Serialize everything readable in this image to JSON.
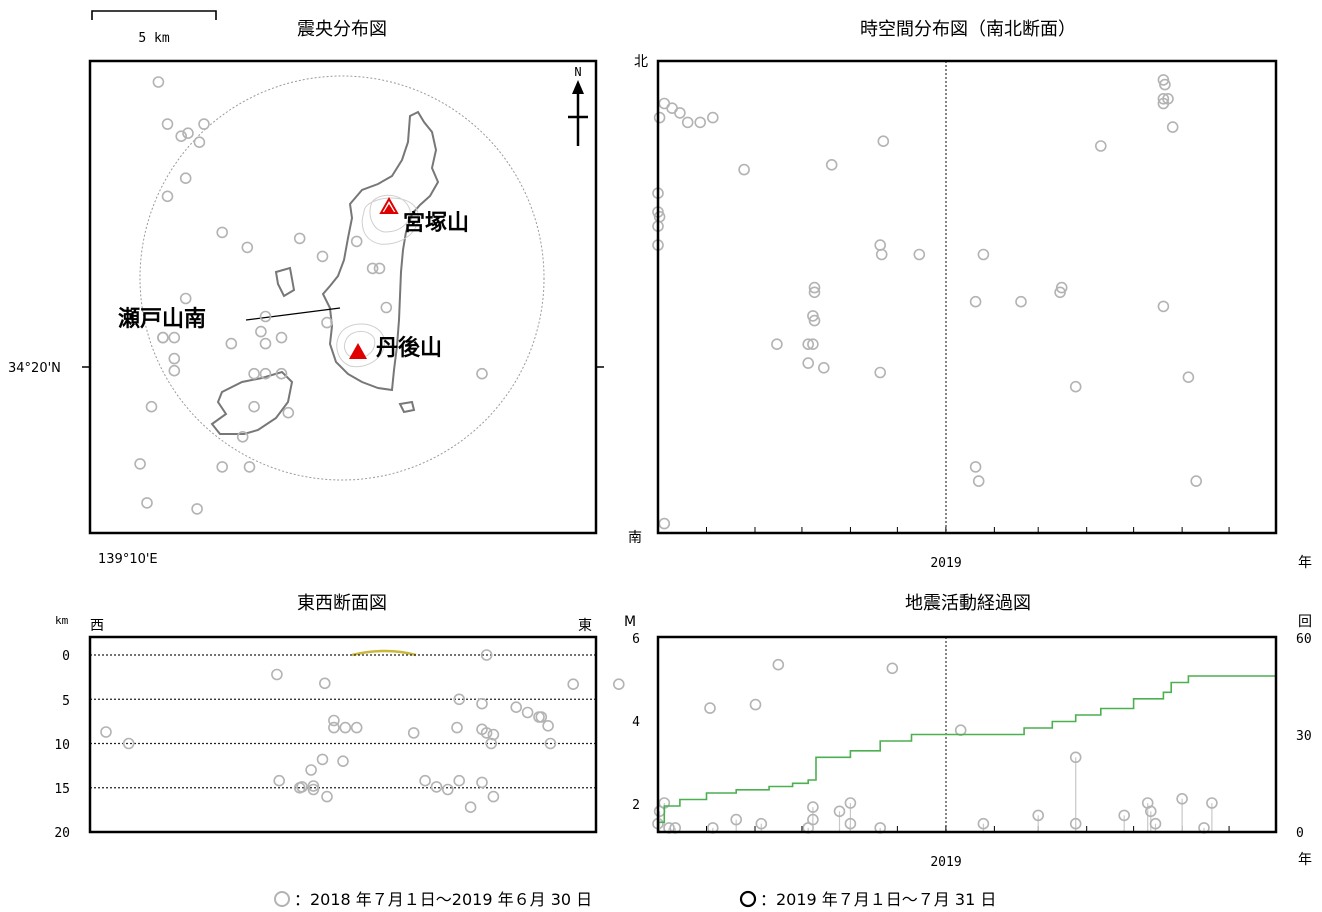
{
  "panels": {
    "epicenter": {
      "title": "震央分布図",
      "scale_label": "5 km",
      "lat_label": "34°20'N",
      "lon_label": "139°10'E",
      "north_label": "N"
    },
    "spacetime": {
      "title": "時空間分布図（南北断面）",
      "north_label": "北",
      "south_label": "南",
      "year_tick": "2019",
      "year_unit": "年"
    },
    "ew_section": {
      "title": "東西断面図",
      "west_label": "西",
      "east_label": "東",
      "depth_unit": "km",
      "depth_ticks": [
        "0",
        "5",
        "10",
        "15",
        "20"
      ]
    },
    "activity": {
      "title": "地震活動経過図",
      "m_label": "M",
      "count_label": "回",
      "m_ticks": [
        "6",
        "4",
        "2"
      ],
      "count_ticks": [
        "60",
        "30",
        "0"
      ],
      "year_tick": "2019",
      "year_unit": "年"
    }
  },
  "map_labels": {
    "miyatsukayama": "宮塚山",
    "tangoyama": "丹後山",
    "setoyama_south": "瀬戸山南"
  },
  "legend": {
    "past": "：2018 年７月１日〜2019 年６月 30 日",
    "recent": "：2019 年７月１日〜７月 31 日"
  },
  "colors": {
    "past_events": "#b3b3b3",
    "recent_events": "#000000",
    "cumulative": "#4caf50",
    "volcano": "#e00000"
  },
  "chart_data": [
    {
      "type": "scatter",
      "title": "震央分布図",
      "description": "epicenters (all in past period, gray)",
      "x": [
        139.15,
        139.153,
        139.175,
        139.158,
        139.162,
        139.178,
        139.176,
        139.168,
        139.171,
        139.17,
        139.162,
        139.186,
        139.197,
        139.22,
        139.23,
        139.245,
        139.255,
        139.258,
        139.232,
        139.203,
        139.205,
        139.16,
        139.165,
        139.19,
        139.205,
        139.212,
        139.215,
        139.205,
        139.212,
        139.2,
        139.2,
        139.195,
        139.186,
        139.155,
        139.17,
        139.198,
        139.165,
        139.165,
        139.16,
        139.252,
        139.3
      ],
      "y": [
        34.303,
        34.29,
        34.288,
        34.43,
        34.416,
        34.416,
        34.41,
        34.412,
        34.413,
        34.398,
        34.392,
        34.38,
        34.375,
        34.378,
        34.372,
        34.377,
        34.368,
        34.355,
        34.35,
        34.347,
        34.352,
        34.345,
        34.345,
        34.343,
        34.343,
        34.345,
        34.32,
        34.333,
        34.333,
        34.333,
        34.322,
        34.312,
        34.302,
        34.322,
        34.358,
        34.302,
        34.338,
        34.334,
        34.345,
        34.368,
        34.333
      ]
    },
    {
      "type": "scatter",
      "title": "時空間分布図（南北断面）",
      "x": [
        "2018-07-02",
        "2018-07-05",
        "2018-07-10",
        "2018-07-15",
        "2018-07-20",
        "2018-07-28",
        "2018-08-05",
        "2018-07-01",
        "2018-07-02",
        "2018-07-01",
        "2018-07-01",
        "2018-07-01",
        "2018-07-05",
        "2018-09-15",
        "2018-10-05",
        "2018-10-05",
        "2018-10-15",
        "2018-11-20",
        "2018-11-22",
        "2018-12-15",
        "2018-10-08",
        "2018-10-09",
        "2018-10-09",
        "2018-10-09",
        "2018-10-08",
        "2018-08-25",
        "2018-10-20",
        "2018-11-21",
        "2018-11-20",
        "2019-01-20",
        "2019-01-25",
        "2019-02-18",
        "2019-03-25",
        "2019-03-15",
        "2019-03-16",
        "2019-04-10",
        "2019-05-20",
        "2019-06-05",
        "2019-01-20",
        "2019-06-10",
        "2019-01-22",
        "2019-05-26",
        "2019-05-20",
        "2019-05-21",
        "2019-05-20",
        "2019-05-20",
        "2019-05-23"
      ],
      "y": [
        0.88,
        0.91,
        0.9,
        0.89,
        0.87,
        0.87,
        0.88,
        0.65,
        0.67,
        0.68,
        0.72,
        0.61,
        0.02,
        0.4,
        0.4,
        0.36,
        0.35,
        0.34,
        0.83,
        0.59,
        0.46,
        0.45,
        0.52,
        0.51,
        0.4,
        0.77,
        0.78,
        0.59,
        0.61,
        0.49,
        0.59,
        0.49,
        0.31,
        0.51,
        0.52,
        0.82,
        0.48,
        0.33,
        0.14,
        0.11,
        0.11,
        0.86,
        0.96,
        0.95,
        0.92,
        0.91,
        0.92
      ],
      "ylabel_top": "北",
      "ylabel_bottom": "南"
    },
    {
      "type": "scatter",
      "title": "東西断面図",
      "x": [
        139.135,
        139.145,
        139.21,
        139.231,
        139.235,
        139.235,
        139.24,
        139.245,
        139.239,
        139.225,
        139.23,
        139.226,
        139.226,
        139.221,
        139.22,
        139.211,
        139.232,
        139.29,
        139.3,
        139.315,
        139.32,
        139.325,
        139.326,
        139.3,
        139.302,
        139.305,
        139.329,
        139.34,
        139.36,
        139.4,
        139.43,
        139.48,
        139.42,
        139.51,
        139.27,
        139.275,
        139.28,
        139.285,
        139.29,
        139.295,
        139.305,
        139.304,
        139.289,
        139.33,
        139.3,
        139.302
      ],
      "y": [
        8.7,
        10.0,
        2.2,
        3.2,
        7.4,
        8.2,
        8.2,
        8.2,
        12.0,
        13.0,
        11.8,
        14.8,
        15.2,
        14.9,
        15.0,
        14.2,
        16.0,
        5.0,
        5.5,
        5.9,
        6.5,
        7.0,
        7.0,
        8.4,
        8.8,
        9.0,
        8.0,
        3.3,
        3.3,
        6.0,
        1.1,
        1.5,
        5.6,
        8.5,
        8.8,
        14.2,
        14.9,
        15.2,
        14.2,
        17.2,
        16.0,
        10.0,
        8.2,
        10.0,
        14.4,
        0.0
      ],
      "ylabel": "km",
      "ylim": [
        0,
        20
      ],
      "y_ticks": [
        0,
        5,
        10,
        15,
        20
      ]
    },
    {
      "type": "line",
      "title": "地震活動経過図",
      "series": [
        {
          "name": "cumulative",
          "x": [
            "2018-07-01",
            "2018-07-05",
            "2018-07-15",
            "2018-08-01",
            "2018-08-20",
            "2018-09-10",
            "2018-09-25",
            "2018-10-05",
            "2018-10-10",
            "2018-11-01",
            "2018-11-20",
            "2018-12-10",
            "2018-12-20",
            "2019-01-10",
            "2019-02-01",
            "2019-02-20",
            "2019-03-10",
            "2019-03-25",
            "2019-04-10",
            "2019-05-01",
            "2019-05-20",
            "2019-05-25",
            "2019-06-05",
            "2019-06-30"
          ],
          "values": [
            3,
            8,
            10,
            12,
            13,
            14,
            15,
            16,
            23,
            25,
            28,
            30,
            30,
            30,
            30,
            32,
            34,
            36,
            38,
            41,
            43,
            46,
            48,
            48
          ]
        }
      ],
      "stems_m": [
        1.5,
        1.8,
        2.0,
        1.4,
        1.4,
        1.4,
        1.6,
        1.5,
        1.4,
        1.9,
        1.6,
        1.8,
        2.0,
        1.5,
        1.4,
        1.5,
        1.7,
        3.1,
        1.5,
        1.7,
        2.0,
        1.8,
        1.5,
        2.1,
        1.4,
        2.0
      ],
      "stems_x": [
        "2018-07-01",
        "2018-07-02",
        "2018-07-05",
        "2018-07-08",
        "2018-07-12",
        "2018-08-05",
        "2018-08-20",
        "2018-09-05",
        "2018-10-05",
        "2018-10-08",
        "2018-10-08",
        "2018-10-25",
        "2018-11-01",
        "2018-11-01",
        "2018-11-20",
        "2019-01-25",
        "2019-03-01",
        "2019-03-25",
        "2019-03-25",
        "2019-04-25",
        "2019-05-10",
        "2019-05-12",
        "2019-05-15",
        "2019-06-01",
        "2019-06-15",
        "2019-06-20"
      ],
      "ylabel_left": "M",
      "ylim_left": [
        1.3,
        6
      ],
      "y_ticks_left": [
        2,
        4,
        6
      ],
      "ylabel_right": "回",
      "ylim_right": [
        0,
        60
      ],
      "y_ticks_right": [
        0,
        30,
        60
      ]
    }
  ]
}
